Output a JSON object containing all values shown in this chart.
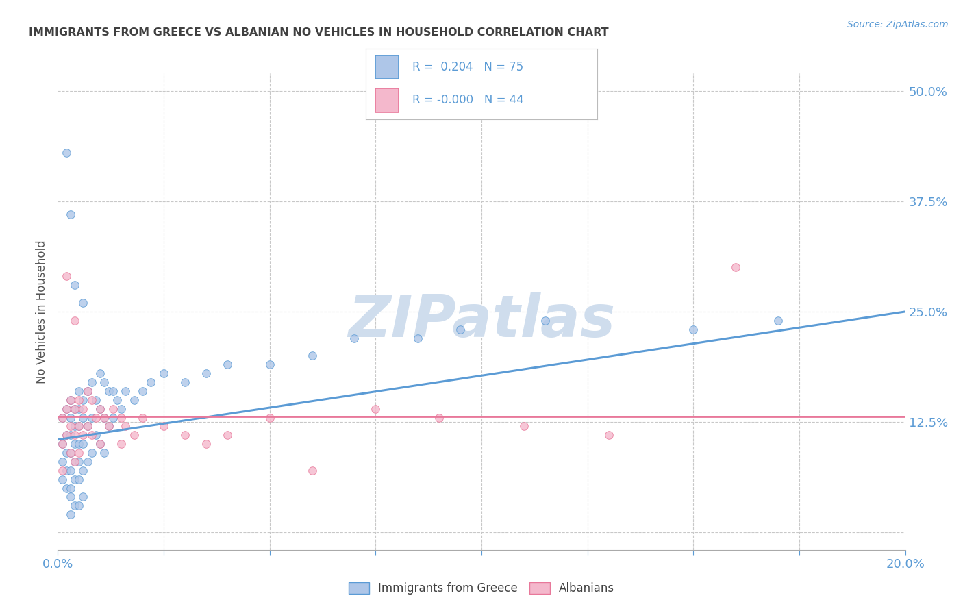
{
  "title": "IMMIGRANTS FROM GREECE VS ALBANIAN NO VEHICLES IN HOUSEHOLD CORRELATION CHART",
  "source_text": "Source: ZipAtlas.com",
  "ylabel": "No Vehicles in Household",
  "watermark": "ZIPatlas",
  "xlim": [
    0.0,
    0.2
  ],
  "ylim": [
    -0.02,
    0.52
  ],
  "ytick_positions": [
    0.0,
    0.125,
    0.25,
    0.375,
    0.5
  ],
  "ytick_labels": [
    "",
    "12.5%",
    "25.0%",
    "37.5%",
    "50.0%"
  ],
  "xtick_positions": [
    0.0,
    0.025,
    0.05,
    0.075,
    0.1,
    0.125,
    0.15,
    0.175,
    0.2
  ],
  "legend_labels": [
    "Immigrants from Greece",
    "Albanians"
  ],
  "legend_r_values": [
    "0.204",
    "-0.000"
  ],
  "legend_n_values": [
    "75",
    "44"
  ],
  "blue_color": "#5b9bd5",
  "blue_fill": "#aec6e8",
  "pink_color": "#e8789a",
  "pink_fill": "#f4b8cc",
  "title_color": "#404040",
  "axis_color": "#5b9bd5",
  "grid_color": "#c8c8c8",
  "watermark_color": "#cfdded",
  "blue_scatter_x": [
    0.001,
    0.001,
    0.001,
    0.001,
    0.002,
    0.002,
    0.002,
    0.002,
    0.002,
    0.003,
    0.003,
    0.003,
    0.003,
    0.003,
    0.003,
    0.003,
    0.003,
    0.004,
    0.004,
    0.004,
    0.004,
    0.004,
    0.004,
    0.005,
    0.005,
    0.005,
    0.005,
    0.005,
    0.005,
    0.005,
    0.006,
    0.006,
    0.006,
    0.006,
    0.006,
    0.007,
    0.007,
    0.007,
    0.008,
    0.008,
    0.008,
    0.009,
    0.009,
    0.01,
    0.01,
    0.01,
    0.011,
    0.011,
    0.011,
    0.012,
    0.012,
    0.013,
    0.013,
    0.014,
    0.015,
    0.016,
    0.018,
    0.02,
    0.022,
    0.025,
    0.03,
    0.035,
    0.04,
    0.05,
    0.06,
    0.07,
    0.085,
    0.095,
    0.115,
    0.15,
    0.17,
    0.002,
    0.003,
    0.004,
    0.006
  ],
  "blue_scatter_y": [
    0.13,
    0.1,
    0.08,
    0.06,
    0.14,
    0.11,
    0.09,
    0.07,
    0.05,
    0.15,
    0.13,
    0.11,
    0.09,
    0.07,
    0.05,
    0.04,
    0.02,
    0.14,
    0.12,
    0.1,
    0.08,
    0.06,
    0.03,
    0.16,
    0.14,
    0.12,
    0.1,
    0.08,
    0.06,
    0.03,
    0.15,
    0.13,
    0.1,
    0.07,
    0.04,
    0.16,
    0.12,
    0.08,
    0.17,
    0.13,
    0.09,
    0.15,
    0.11,
    0.18,
    0.14,
    0.1,
    0.17,
    0.13,
    0.09,
    0.16,
    0.12,
    0.16,
    0.13,
    0.15,
    0.14,
    0.16,
    0.15,
    0.16,
    0.17,
    0.18,
    0.17,
    0.18,
    0.19,
    0.19,
    0.2,
    0.22,
    0.22,
    0.23,
    0.24,
    0.23,
    0.24,
    0.43,
    0.36,
    0.28,
    0.26
  ],
  "pink_scatter_x": [
    0.001,
    0.001,
    0.001,
    0.002,
    0.002,
    0.003,
    0.003,
    0.003,
    0.004,
    0.004,
    0.004,
    0.005,
    0.005,
    0.005,
    0.006,
    0.006,
    0.007,
    0.007,
    0.008,
    0.008,
    0.009,
    0.01,
    0.01,
    0.011,
    0.012,
    0.013,
    0.015,
    0.015,
    0.016,
    0.018,
    0.02,
    0.025,
    0.03,
    0.035,
    0.04,
    0.05,
    0.06,
    0.075,
    0.09,
    0.11,
    0.13,
    0.002,
    0.16,
    0.004
  ],
  "pink_scatter_y": [
    0.13,
    0.1,
    0.07,
    0.14,
    0.11,
    0.15,
    0.12,
    0.09,
    0.14,
    0.11,
    0.08,
    0.15,
    0.12,
    0.09,
    0.14,
    0.11,
    0.16,
    0.12,
    0.15,
    0.11,
    0.13,
    0.14,
    0.1,
    0.13,
    0.12,
    0.14,
    0.13,
    0.1,
    0.12,
    0.11,
    0.13,
    0.12,
    0.11,
    0.1,
    0.11,
    0.13,
    0.07,
    0.14,
    0.13,
    0.12,
    0.11,
    0.29,
    0.3,
    0.24
  ],
  "blue_line_x": [
    0.0,
    0.2
  ],
  "blue_line_y": [
    0.105,
    0.25
  ],
  "pink_line_x": [
    0.0,
    0.2
  ],
  "pink_line_y": [
    0.131,
    0.131
  ]
}
